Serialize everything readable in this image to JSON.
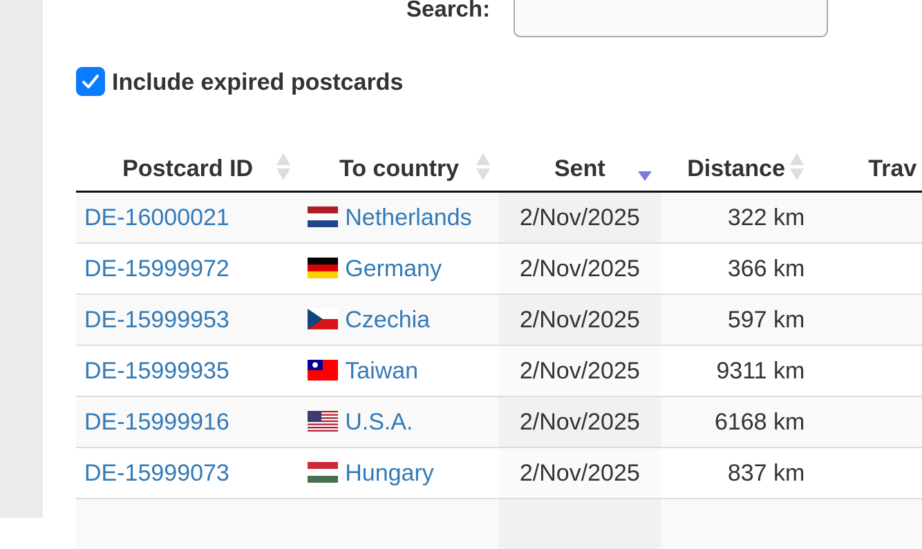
{
  "search": {
    "label": "Search:",
    "value": ""
  },
  "filter": {
    "label": "Include expired postcards",
    "checked": true
  },
  "table": {
    "columns": [
      {
        "label": "Postcard ID",
        "sort": "none"
      },
      {
        "label": "To country",
        "sort": "none"
      },
      {
        "label": "Sent",
        "sort": "descending"
      },
      {
        "label": "Distance",
        "sort": "none"
      },
      {
        "label": "Trav",
        "sort": "none"
      }
    ],
    "rows": [
      {
        "id": "DE-16000021",
        "flag": "nl",
        "country": "Netherlands",
        "sent": "2/Nov/2025",
        "distance": "322 km"
      },
      {
        "id": "DE-15999972",
        "flag": "de",
        "country": "Germany",
        "sent": "2/Nov/2025",
        "distance": "366 km"
      },
      {
        "id": "DE-15999953",
        "flag": "cz",
        "country": "Czechia",
        "sent": "2/Nov/2025",
        "distance": "597 km"
      },
      {
        "id": "DE-15999935",
        "flag": "tw",
        "country": "Taiwan",
        "sent": "2/Nov/2025",
        "distance": "9311 km"
      },
      {
        "id": "DE-15999916",
        "flag": "us",
        "country": "U.S.A.",
        "sent": "2/Nov/2025",
        "distance": "6168 km"
      },
      {
        "id": "DE-15999073",
        "flag": "hu",
        "country": "Hungary",
        "sent": "2/Nov/2025",
        "distance": "837 km"
      }
    ]
  },
  "colors": {
    "link": "#337ab7",
    "checkbox": "#0a7cff",
    "sort_active": "#7b7be0"
  }
}
